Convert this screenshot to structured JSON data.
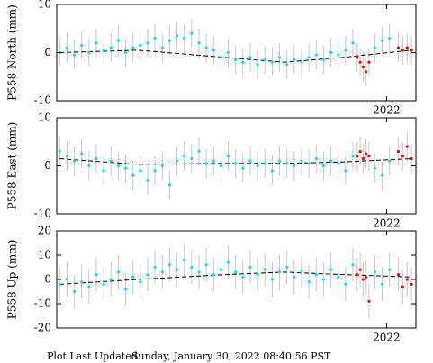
{
  "chart_data": [
    {
      "type": "scatter",
      "y_label": "P558 North (mm)",
      "ylim": [
        -10,
        10
      ],
      "yticks": [
        -10,
        0,
        10
      ],
      "xlim": [
        2019.75,
        2022.2
      ],
      "xticks": [
        2022
      ],
      "series": [
        {
          "color": "#00e5ff",
          "error": 3,
          "style": "points",
          "x": [
            2019.77,
            2019.82,
            2019.87,
            2019.92,
            2019.97,
            2020.02,
            2020.07,
            2020.12,
            2020.17,
            2020.22,
            2020.27,
            2020.32,
            2020.37,
            2020.42,
            2020.47,
            2020.52,
            2020.57,
            2020.62,
            2020.67,
            2020.72,
            2020.77,
            2020.82,
            2020.87,
            2020.92,
            2020.97,
            2021.02,
            2021.07,
            2021.12,
            2021.17,
            2021.22,
            2021.27,
            2021.32,
            2021.37,
            2021.42,
            2021.47,
            2021.52,
            2021.57,
            2021.62,
            2021.67,
            2021.72,
            2021.77,
            2021.92,
            2021.97,
            2022.02
          ],
          "values": [
            0,
            1,
            -0.5,
            1.5,
            0,
            2,
            0.5,
            1,
            2.5,
            0,
            1,
            1.5,
            2,
            3,
            1,
            2.5,
            3.5,
            3,
            4,
            2,
            1,
            0.5,
            -1,
            0,
            -1.5,
            -2,
            -1,
            -2.5,
            -1.5,
            -2,
            -1,
            -2.5,
            -1.5,
            -2,
            -1,
            -0.5,
            -1.5,
            0,
            -0.5,
            0.5,
            2,
            1,
            2.5,
            3
          ]
        },
        {
          "color": "#ff0000",
          "error": 3,
          "style": "points",
          "x": [
            2021.8,
            2021.82,
            2021.84,
            2021.86,
            2021.88,
            2022.08,
            2022.11,
            2022.14,
            2022.17
          ],
          "values": [
            -1,
            -2,
            -3,
            -4,
            -2,
            1,
            0.5,
            1,
            0.5
          ]
        },
        {
          "color": "#000000",
          "style": "dashed-line",
          "x": [
            2019.77,
            2020.3,
            2020.9,
            2021.3,
            2021.7,
            2022.17
          ],
          "values": [
            0,
            0.5,
            -1,
            -2,
            -1,
            0.5
          ]
        }
      ]
    },
    {
      "type": "scatter",
      "y_label": "P558 East (mm)",
      "ylim": [
        -10,
        10
      ],
      "yticks": [
        -10,
        0,
        10
      ],
      "xlim": [
        2019.75,
        2022.2
      ],
      "xticks": [
        2022
      ],
      "series": [
        {
          "color": "#00e5ff",
          "error": 3,
          "style": "points",
          "x": [
            2019.77,
            2019.82,
            2019.87,
            2019.92,
            2019.97,
            2020.02,
            2020.07,
            2020.12,
            2020.17,
            2020.22,
            2020.27,
            2020.32,
            2020.37,
            2020.42,
            2020.47,
            2020.52,
            2020.57,
            2020.62,
            2020.67,
            2020.72,
            2020.77,
            2020.82,
            2020.87,
            2020.92,
            2020.97,
            2021.02,
            2021.07,
            2021.12,
            2021.17,
            2021.22,
            2021.27,
            2021.32,
            2021.37,
            2021.42,
            2021.47,
            2021.52,
            2021.57,
            2021.62,
            2021.67,
            2021.72,
            2021.77,
            2021.92,
            2021.97,
            2022.02
          ],
          "values": [
            3,
            2,
            1,
            2.5,
            0,
            1.5,
            -1,
            1,
            0,
            -0.5,
            -2,
            -1,
            -3,
            -1,
            0,
            -4,
            1,
            2,
            1.5,
            3,
            0.5,
            1,
            0,
            2,
            0.5,
            -0.5,
            1,
            0,
            0.5,
            -1,
            1,
            0.5,
            0,
            1,
            0.5,
            1.5,
            0,
            1,
            0.5,
            -1,
            2,
            -0.5,
            -2,
            1
          ]
        },
        {
          "color": "#ff0000",
          "error": 3,
          "style": "points",
          "x": [
            2021.8,
            2021.82,
            2021.84,
            2021.86,
            2021.88,
            2022.08,
            2022.11,
            2022.14,
            2022.17
          ],
          "values": [
            2,
            3,
            1.5,
            2.5,
            2,
            3,
            2,
            4,
            1.5
          ]
        },
        {
          "color": "#000000",
          "style": "dashed-line",
          "x": [
            2019.77,
            2020.3,
            2020.9,
            2021.3,
            2021.7,
            2022.17
          ],
          "values": [
            1.5,
            0.3,
            0.5,
            0.5,
            0.8,
            1.5
          ]
        }
      ]
    },
    {
      "type": "scatter",
      "y_label": "P558 Up (mm)",
      "ylim": [
        -20,
        20
      ],
      "yticks": [
        -20,
        -10,
        0,
        10,
        20
      ],
      "xlim": [
        2019.75,
        2022.2
      ],
      "xticks": [
        2022
      ],
      "series": [
        {
          "color": "#00e5ff",
          "error": 7,
          "style": "points",
          "x": [
            2019.77,
            2019.82,
            2019.87,
            2019.92,
            2019.97,
            2020.02,
            2020.07,
            2020.12,
            2020.17,
            2020.22,
            2020.27,
            2020.32,
            2020.37,
            2020.42,
            2020.47,
            2020.52,
            2020.57,
            2020.62,
            2020.67,
            2020.72,
            2020.77,
            2020.82,
            2020.87,
            2020.92,
            2020.97,
            2021.02,
            2021.07,
            2021.12,
            2021.17,
            2021.22,
            2021.27,
            2021.32,
            2021.37,
            2021.42,
            2021.47,
            2021.52,
            2021.57,
            2021.62,
            2021.67,
            2021.72,
            2021.77,
            2021.92,
            2021.97,
            2022.02
          ],
          "values": [
            -2,
            0,
            -5,
            -1,
            -3,
            2,
            -2,
            0,
            3,
            -4,
            1,
            -1,
            2,
            5,
            3,
            6,
            4,
            8,
            5,
            3,
            6,
            2,
            4,
            7,
            3,
            1,
            5,
            2,
            4,
            0,
            3,
            5,
            1,
            3,
            -1,
            2,
            0,
            4,
            1,
            -2,
            6,
            3,
            -2,
            4
          ]
        },
        {
          "color": "#ff0000",
          "error": 7,
          "style": "points",
          "x": [
            2021.8,
            2021.82,
            2021.84,
            2021.86,
            2021.88,
            2022.08,
            2022.11,
            2022.14,
            2022.17
          ],
          "values": [
            2,
            4,
            0,
            1,
            -9,
            2,
            -3,
            0,
            -2
          ]
        },
        {
          "color": "#000000",
          "style": "dashed-line",
          "x": [
            2019.77,
            2020.3,
            2020.9,
            2021.3,
            2021.7,
            2022.17
          ],
          "values": [
            -2,
            0,
            2,
            3,
            2,
            1
          ]
        }
      ]
    }
  ],
  "footer": {
    "label": "Plot Last Updated:",
    "text": "Sunday, January 30, 2022 08:40:56 PST"
  }
}
